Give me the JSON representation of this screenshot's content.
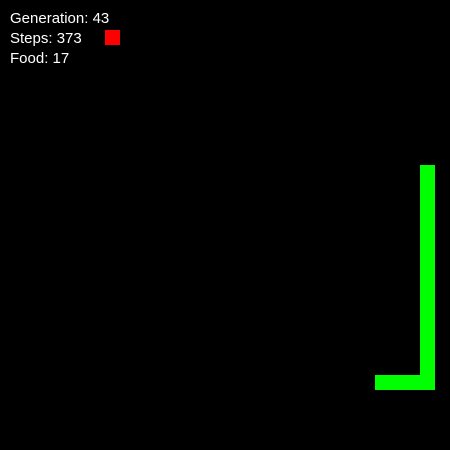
{
  "hud": {
    "generation": {
      "label": "Generation",
      "value": "43"
    },
    "steps": {
      "label": "Steps",
      "value": "373"
    },
    "food": {
      "label": "Food",
      "value": "17"
    }
  },
  "colors": {
    "background": "#000000",
    "snake": "#00ff00",
    "food": "#ff0000",
    "text": "#ffffff"
  }
}
